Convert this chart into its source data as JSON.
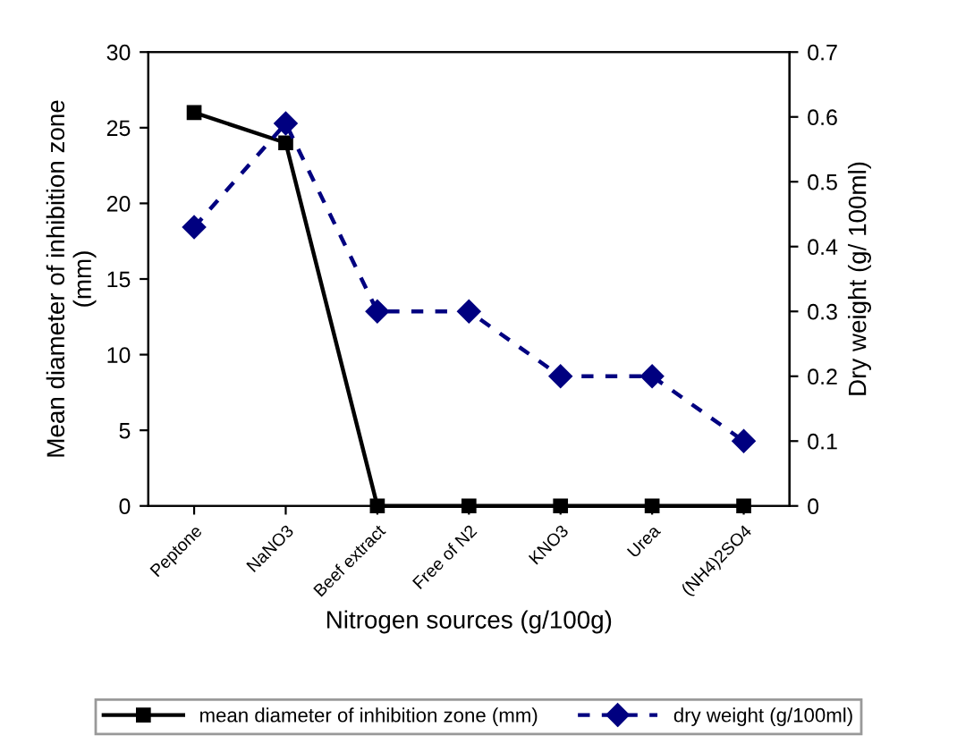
{
  "chart_data": {
    "type": "line",
    "categories": [
      "Peptone",
      "NaNO3",
      "Beef extract",
      "Free of N2",
      "KNO3",
      "Urea",
      "(NH4)2SO4"
    ],
    "xlabel": "Nitrogen sources (g/100g)",
    "ylabel": "Mean diameter of inhibition zone\n(mm)",
    "y2label": "Dry weight (g/ 100ml)",
    "ylim": [
      0,
      30
    ],
    "yticks": [
      0,
      5,
      10,
      15,
      20,
      25,
      30
    ],
    "y2lim": [
      0,
      0.7
    ],
    "y2ticks": [
      0,
      0.1,
      0.2,
      0.3,
      0.4,
      0.5,
      0.6,
      0.7
    ],
    "legend": "bottom",
    "grid": false,
    "series": [
      {
        "name": "mean diameter of inhibition zone (mm)",
        "color": "#000000",
        "marker": "square",
        "line_style": "solid",
        "values": [
          26,
          24,
          0,
          0,
          0,
          0,
          0
        ]
      },
      {
        "name": "dry weight (g/100ml)",
        "color": "#000080",
        "marker": "diamond",
        "line_style": "dashed",
        "axis": "y2",
        "values": [
          0.43,
          0.59,
          0.3,
          0.3,
          0.2,
          0.2,
          0.1
        ]
      }
    ]
  }
}
